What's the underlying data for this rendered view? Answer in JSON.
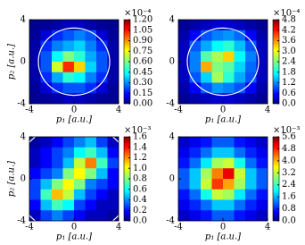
{
  "chart_data": [
    {
      "type": "heatmap",
      "xlabel": "p₁ [a.u.]",
      "ylabel": "p₂ [a.u.]",
      "xlim": [
        -4,
        4
      ],
      "ylim": [
        -4,
        4
      ],
      "xticks": [
        -4,
        0,
        4
      ],
      "yticks": [
        -4,
        0,
        4
      ],
      "clim": [
        0,
        1.2
      ],
      "colorbar_exponent": "×10⁻⁴",
      "cticks": [
        {
          "value": 0,
          "label": "0.00"
        },
        {
          "value": 0.15,
          "label": "0.15"
        },
        {
          "value": 0.3,
          "label": "0.30"
        },
        {
          "value": 0.45,
          "label": "0.45"
        },
        {
          "value": 0.6,
          "label": "0.60"
        },
        {
          "value": 0.75,
          "label": "0.75"
        },
        {
          "value": 0.9,
          "label": "0.90"
        },
        {
          "value": 1.05,
          "label": "1.05"
        },
        {
          "value": 1.2,
          "label": "1.20"
        }
      ],
      "circle_radius": 3.2,
      "z": [
        [
          0.02,
          0.03,
          0.05,
          0.08,
          0.08,
          0.05,
          0.03,
          0.02
        ],
        [
          0.03,
          0.1,
          0.2,
          0.25,
          0.3,
          0.25,
          0.1,
          0.03
        ],
        [
          0.05,
          0.2,
          0.3,
          0.35,
          0.4,
          0.3,
          0.2,
          0.05
        ],
        [
          0.05,
          0.25,
          0.45,
          0.6,
          0.5,
          0.35,
          0.25,
          0.05
        ],
        [
          0.05,
          0.25,
          0.7,
          1.0,
          0.8,
          0.4,
          0.25,
          0.05
        ],
        [
          0.05,
          0.2,
          0.35,
          0.5,
          0.45,
          0.3,
          0.2,
          0.05
        ],
        [
          0.03,
          0.1,
          0.2,
          0.25,
          0.25,
          0.2,
          0.1,
          0.03
        ],
        [
          0.02,
          0.03,
          0.05,
          0.08,
          0.08,
          0.05,
          0.03,
          0.02
        ]
      ]
    },
    {
      "type": "heatmap",
      "xlabel": "p₁ [a.u.]",
      "xlim": [
        -4,
        4
      ],
      "ylim": [
        -4,
        4
      ],
      "xticks": [
        -4,
        0,
        4
      ],
      "yticks": [
        -4,
        0,
        4
      ],
      "clim": [
        0,
        4.8
      ],
      "colorbar_exponent": "×10⁻⁴",
      "cticks": [
        {
          "value": 0,
          "label": "0.0"
        },
        0.6,
        1.2,
        1.8,
        2.4,
        {
          "value": 3,
          "label": "3.0"
        },
        3.6,
        4.2,
        4.8
      ],
      "circle_radius": 3.2,
      "z": [
        [
          0.1,
          0.2,
          0.3,
          0.4,
          0.4,
          0.3,
          0.2,
          0.1
        ],
        [
          0.2,
          0.6,
          1.0,
          1.2,
          1.3,
          1.1,
          0.6,
          0.2
        ],
        [
          0.3,
          1.0,
          1.4,
          1.8,
          2.0,
          1.5,
          1.0,
          0.3
        ],
        [
          0.3,
          1.2,
          2.2,
          2.6,
          3.2,
          1.8,
          1.2,
          0.3
        ],
        [
          0.3,
          1.2,
          3.4,
          2.4,
          2.2,
          1.6,
          1.1,
          0.3
        ],
        [
          0.3,
          1.0,
          1.6,
          2.6,
          2.0,
          1.4,
          1.0,
          0.3
        ],
        [
          0.2,
          0.6,
          1.0,
          1.3,
          1.2,
          1.0,
          0.6,
          0.2
        ],
        [
          0.1,
          0.2,
          0.3,
          0.4,
          0.4,
          0.3,
          0.2,
          0.1
        ]
      ]
    },
    {
      "type": "heatmap",
      "xlabel": "p₁ [a.u.]",
      "ylabel": "p₂ [a.u.]",
      "xlim": [
        -4,
        4
      ],
      "ylim": [
        -4,
        4
      ],
      "xticks": [
        -4,
        0,
        4
      ],
      "yticks": [
        -4,
        0,
        4
      ],
      "clim": [
        0,
        1.6
      ],
      "colorbar_exponent": "×10⁻³",
      "cticks": [
        {
          "value": 0,
          "label": "0.0"
        },
        0.2,
        0.4,
        0.6,
        0.8,
        {
          "value": 1,
          "label": "1.0"
        },
        1.2,
        1.4,
        1.6
      ],
      "circle_radius": 5.3,
      "z": [
        [
          0.05,
          0.1,
          0.2,
          0.3,
          0.4,
          0.5,
          0.3,
          0.1
        ],
        [
          0.1,
          0.2,
          0.3,
          0.4,
          0.6,
          0.7,
          0.5,
          0.2
        ],
        [
          0.1,
          0.2,
          0.3,
          0.5,
          0.9,
          1.2,
          0.7,
          0.3
        ],
        [
          0.2,
          0.3,
          0.4,
          0.8,
          1.0,
          0.8,
          0.5,
          0.2
        ],
        [
          0.3,
          0.5,
          0.8,
          1.0,
          0.8,
          0.4,
          0.3,
          0.2
        ],
        [
          0.3,
          0.7,
          1.1,
          0.9,
          0.5,
          0.3,
          0.2,
          0.1
        ],
        [
          0.2,
          0.5,
          0.7,
          0.6,
          0.3,
          0.2,
          0.1,
          0.1
        ],
        [
          0.1,
          0.3,
          0.4,
          0.3,
          0.2,
          0.1,
          0.1,
          0.05
        ]
      ]
    },
    {
      "type": "heatmap",
      "xlabel": "p₁ [a.u.]",
      "xlim": [
        -4,
        4
      ],
      "ylim": [
        -4,
        4
      ],
      "xticks": [
        -4,
        0,
        4
      ],
      "yticks": [
        -4,
        0,
        4
      ],
      "clim": [
        0,
        5.6
      ],
      "colorbar_exponent": "×10⁻³",
      "cticks": [
        {
          "value": 0,
          "label": "0.0"
        },
        0.8,
        1.6,
        2.4,
        3.2,
        {
          "value": 4,
          "label": "4.0"
        },
        4.8,
        5.6
      ],
      "z": [
        [
          0.4,
          0.6,
          0.8,
          1.2,
          1.2,
          0.8,
          0.6,
          0.4
        ],
        [
          0.6,
          0.9,
          1.3,
          1.8,
          1.8,
          1.3,
          0.9,
          0.6
        ],
        [
          0.8,
          1.3,
          2.0,
          3.0,
          3.2,
          2.2,
          1.3,
          0.8
        ],
        [
          1.2,
          1.8,
          3.0,
          4.2,
          5.0,
          3.2,
          1.8,
          1.2
        ],
        [
          1.2,
          1.8,
          3.2,
          4.6,
          4.0,
          3.0,
          1.8,
          1.2
        ],
        [
          0.8,
          1.3,
          2.2,
          3.2,
          3.0,
          2.0,
          1.3,
          0.8
        ],
        [
          0.6,
          0.9,
          1.3,
          1.8,
          1.8,
          1.3,
          0.9,
          0.6
        ],
        [
          0.4,
          0.6,
          0.8,
          1.2,
          1.2,
          0.8,
          0.6,
          0.4
        ]
      ]
    }
  ]
}
